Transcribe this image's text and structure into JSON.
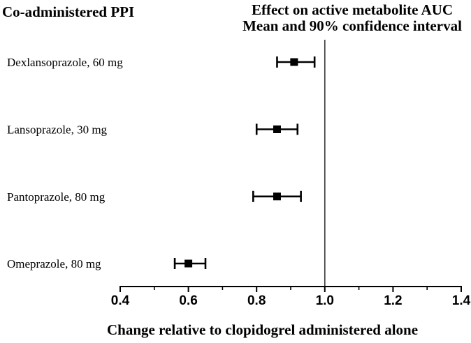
{
  "header": {
    "left_title": "Co-administered PPI",
    "right_title_line1": "Effect on active metabolite AUC",
    "right_title_line2": "Mean and 90% confidence interval"
  },
  "chart_data": {
    "type": "scatter",
    "subtype": "forest-plot",
    "title": "Effect on active metabolite AUC, Mean and 90% confidence interval",
    "xlabel": "Change relative to clopidogrel administered alone",
    "ylabel": "Co-administered PPI",
    "xlim": [
      0.4,
      1.4
    ],
    "x_major_ticks": [
      0.4,
      0.6,
      0.8,
      1.0,
      1.2,
      1.4
    ],
    "x_major_tick_labels": [
      "0.4",
      "0.6",
      "0.8",
      "1.0",
      "1.2",
      "1.4"
    ],
    "x_minor_ticks": [
      0.5,
      0.7,
      0.9,
      1.1,
      1.3
    ],
    "reference_line_x": 1.0,
    "grid": false,
    "legend": false,
    "marker_shape": "filled-square",
    "rows": [
      {
        "label": "Dexlansoprazole, 60 mg",
        "mean": 0.91,
        "ci_low": 0.86,
        "ci_high": 0.97
      },
      {
        "label": "Lansoprazole, 30 mg",
        "mean": 0.86,
        "ci_low": 0.8,
        "ci_high": 0.92
      },
      {
        "label": "Pantoprazole, 80 mg",
        "mean": 0.86,
        "ci_low": 0.79,
        "ci_high": 0.93
      },
      {
        "label": "Omeprazole, 80 mg",
        "mean": 0.6,
        "ci_low": 0.56,
        "ci_high": 0.65
      }
    ],
    "colors": {
      "marker": "#000000",
      "error_bar": "#000000",
      "axis": "#000000",
      "reference_line": "#404040",
      "text": "#000000",
      "background": "#ffffff"
    }
  }
}
